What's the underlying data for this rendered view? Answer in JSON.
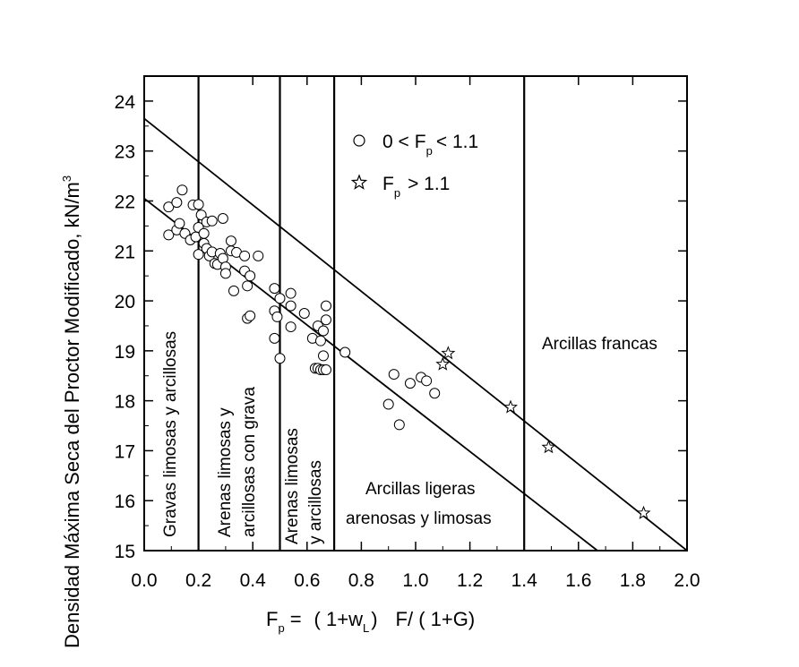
{
  "chart_data": {
    "type": "scatter",
    "ylabel": "Densidad Máxima Seca del Proctor Modificado, kN/m",
    "ylabel_sup": "3",
    "xlabel": {
      "f": "F",
      "f_sub": "p",
      "eq": "=",
      "num": "( 1+w",
      "num_sub": "L",
      "num_close": ")",
      "tail": "F/ ( 1+G)"
    },
    "xlim": [
      0.0,
      2.0
    ],
    "ylim": [
      15,
      24.5
    ],
    "x_ticks": [
      "0.0",
      "0.2",
      "0.4",
      "0.6",
      "0.8",
      "1.0",
      "1.2",
      "1.4",
      "1.6",
      "1.8",
      "2.0"
    ],
    "y_ticks": [
      "15",
      "16",
      "17",
      "18",
      "19",
      "20",
      "21",
      "22",
      "23",
      "24"
    ],
    "x_tick_values": [
      0.0,
      0.2,
      0.4,
      0.6,
      0.8,
      1.0,
      1.2,
      1.4,
      1.6,
      1.8,
      2.0
    ],
    "y_tick_values": [
      15,
      16,
      17,
      18,
      19,
      20,
      21,
      22,
      23,
      24
    ],
    "grid": false,
    "legend_position": "top-center",
    "legend": [
      {
        "marker": "circle",
        "pre": "0 <",
        "sym": "F",
        "sub": "p",
        "post": "< 1.1"
      },
      {
        "marker": "star",
        "pre": "",
        "sym": "F",
        "sub": "p",
        "post": "> 1.1"
      }
    ],
    "boundaries_x": [
      0.2,
      0.5,
      0.7,
      1.4
    ],
    "envelope_lines": [
      {
        "x1": 0.0,
        "y1": 23.65,
        "x2": 2.0,
        "y2": 15.0
      },
      {
        "x1": 0.0,
        "y1": 22.05,
        "x2": 1.67,
        "y2": 15.0
      }
    ],
    "region_labels": {
      "gravas": "Gravas limosas y arcillosas",
      "arenas_grava_1": "Arenas limosas y",
      "arenas_grava_2": "arcillosas con grava",
      "arenas_1": "Arenas limosas",
      "arenas_2": "y arcillosas",
      "ligeras_1": "Arcillas ligeras",
      "ligeras_2": "arenosas y limosas",
      "francas": "Arcillas francas"
    },
    "series": [
      {
        "marker": "circle",
        "points": [
          [
            0.09,
            21.88
          ],
          [
            0.09,
            21.32
          ],
          [
            0.12,
            21.97
          ],
          [
            0.12,
            21.42
          ],
          [
            0.13,
            21.55
          ],
          [
            0.14,
            22.22
          ],
          [
            0.15,
            21.35
          ],
          [
            0.17,
            21.22
          ],
          [
            0.18,
            21.92
          ],
          [
            0.19,
            21.28
          ],
          [
            0.2,
            21.93
          ],
          [
            0.2,
            21.47
          ],
          [
            0.2,
            20.93
          ],
          [
            0.21,
            21.72
          ],
          [
            0.22,
            21.15
          ],
          [
            0.22,
            21.35
          ],
          [
            0.23,
            21.58
          ],
          [
            0.23,
            21.05
          ],
          [
            0.24,
            20.9
          ],
          [
            0.25,
            21.6
          ],
          [
            0.25,
            20.98
          ],
          [
            0.26,
            20.75
          ],
          [
            0.27,
            20.73
          ],
          [
            0.28,
            20.95
          ],
          [
            0.29,
            20.85
          ],
          [
            0.29,
            21.65
          ],
          [
            0.3,
            20.68
          ],
          [
            0.3,
            20.55
          ],
          [
            0.32,
            21.2
          ],
          [
            0.32,
            21.0
          ],
          [
            0.33,
            20.2
          ],
          [
            0.34,
            20.97
          ],
          [
            0.37,
            20.6
          ],
          [
            0.37,
            20.9
          ],
          [
            0.38,
            20.3
          ],
          [
            0.38,
            19.65
          ],
          [
            0.39,
            20.5
          ],
          [
            0.39,
            19.7
          ],
          [
            0.42,
            20.9
          ],
          [
            0.48,
            20.25
          ],
          [
            0.48,
            19.8
          ],
          [
            0.48,
            19.25
          ],
          [
            0.49,
            19.68
          ],
          [
            0.5,
            20.05
          ],
          [
            0.5,
            18.85
          ],
          [
            0.54,
            20.15
          ],
          [
            0.54,
            19.9
          ],
          [
            0.54,
            19.48
          ],
          [
            0.59,
            19.75
          ],
          [
            0.62,
            19.25
          ],
          [
            0.63,
            18.65
          ],
          [
            0.64,
            18.65
          ],
          [
            0.64,
            19.5
          ],
          [
            0.65,
            19.2
          ],
          [
            0.65,
            18.62
          ],
          [
            0.66,
            19.4
          ],
          [
            0.66,
            18.9
          ],
          [
            0.66,
            18.62
          ],
          [
            0.67,
            19.62
          ],
          [
            0.67,
            18.62
          ],
          [
            0.67,
            19.9
          ],
          [
            0.74,
            18.97
          ],
          [
            0.9,
            17.93
          ],
          [
            0.92,
            18.53
          ],
          [
            0.94,
            17.52
          ],
          [
            0.98,
            18.35
          ],
          [
            1.02,
            18.47
          ],
          [
            1.04,
            18.4
          ],
          [
            1.07,
            18.15
          ]
        ]
      },
      {
        "marker": "star",
        "points": [
          [
            1.1,
            18.73
          ],
          [
            1.12,
            18.95
          ],
          [
            1.35,
            17.87
          ],
          [
            1.49,
            17.07
          ],
          [
            1.84,
            15.75
          ]
        ]
      }
    ],
    "colors": {
      "ink": "#000000",
      "background": "#ffffff"
    }
  }
}
